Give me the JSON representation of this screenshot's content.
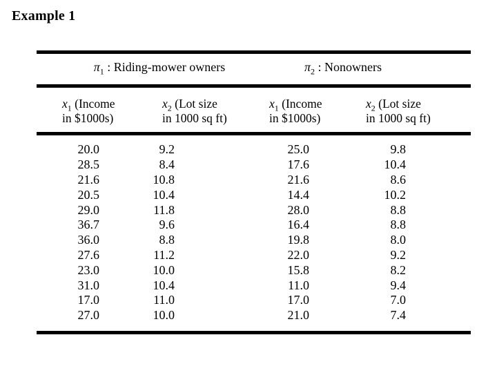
{
  "page_title": "Example 1",
  "table": {
    "groups": [
      {
        "sym": "π",
        "sub": "1",
        "label": " : Riding-mower owners"
      },
      {
        "sym": "π",
        "sub": "2",
        "label": " : Nonowners"
      }
    ],
    "columns": [
      {
        "var": "x",
        "sub": "1",
        "line1": " (Income",
        "line2": "in $1000s)"
      },
      {
        "var": "x",
        "sub": "2",
        "line1": " (Lot size",
        "line2": "in 1000 sq ft)"
      },
      {
        "var": "x",
        "sub": "1",
        "line1": " (Income",
        "line2": "in $1000s)"
      },
      {
        "var": "x",
        "sub": "2",
        "line1": " (Lot size",
        "line2": "in 1000 sq ft)"
      }
    ],
    "rows": [
      [
        "20.0",
        "9.2",
        "25.0",
        "9.8"
      ],
      [
        "28.5",
        "8.4",
        "17.6",
        "10.4"
      ],
      [
        "21.6",
        "10.8",
        "21.6",
        "8.6"
      ],
      [
        "20.5",
        "10.4",
        "14.4",
        "10.2"
      ],
      [
        "29.0",
        "11.8",
        "28.0",
        "8.8"
      ],
      [
        "36.7",
        "9.6",
        "16.4",
        "8.8"
      ],
      [
        "36.0",
        "8.8",
        "19.8",
        "8.0"
      ],
      [
        "27.6",
        "11.2",
        "22.0",
        "9.2"
      ],
      [
        "23.0",
        "10.0",
        "15.8",
        "8.2"
      ],
      [
        "31.0",
        "10.4",
        "11.0",
        "9.4"
      ],
      [
        "17.0",
        "11.0",
        "17.0",
        "7.0"
      ],
      [
        "27.0",
        "10.0",
        "21.0",
        "7.4"
      ]
    ]
  },
  "colors": {
    "background": "#ffffff",
    "text": "#000000",
    "rule": "#000000"
  }
}
